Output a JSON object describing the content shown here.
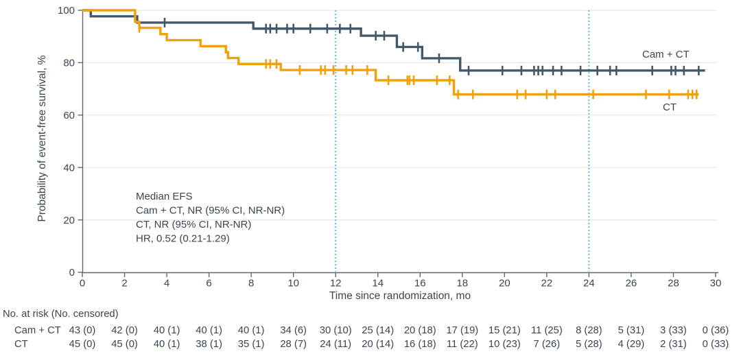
{
  "figure": {
    "y_axis_label": "Probability of event-free survival, %",
    "x_axis_label": "Time since randomization, mo",
    "legend": {
      "cam_ct": "Cam + CT",
      "ct": "CT"
    },
    "annotation": {
      "lines": [
        "Median EFS",
        "Cam + CT, NR (95% CI, NR-NR)",
        "CT, NR (95% CI, NR-NR)",
        "HR, 0.52 (0.21-1.29)"
      ]
    }
  },
  "chart_data": {
    "type": "line",
    "subtype": "kaplan-meier-step",
    "title": "",
    "xlabel": "Time since randomization, mo",
    "ylabel": "Probability of event-free survival, %",
    "xlim": [
      0,
      30
    ],
    "ylim": [
      0,
      100
    ],
    "x_ticks": [
      0,
      2,
      4,
      6,
      8,
      10,
      12,
      14,
      16,
      18,
      20,
      22,
      24,
      26,
      28,
      30
    ],
    "y_ticks": [
      0,
      20,
      40,
      60,
      80,
      100
    ],
    "grid": true,
    "reference_lines_x": [
      12,
      24
    ],
    "reference_line_color": "#4FC0E8",
    "colors": {
      "grid": "#E7E7E7",
      "axis": "#63676B",
      "text": "#3A4550"
    },
    "series": [
      {
        "name": "Cam + CT",
        "color": "#43596B",
        "steps": [
          [
            0,
            100
          ],
          [
            0.4,
            97.7
          ],
          [
            2.6,
            95.3
          ],
          [
            8.1,
            93.0
          ],
          [
            13.2,
            90.3
          ],
          [
            14.9,
            86.0
          ],
          [
            16.1,
            81.7
          ],
          [
            17.9,
            77.0
          ],
          [
            29.5,
            77.0
          ]
        ],
        "censors": [
          [
            3.9,
            95.3
          ],
          [
            8.7,
            93.0
          ],
          [
            8.9,
            93.0
          ],
          [
            9.2,
            93.0
          ],
          [
            9.7,
            93.0
          ],
          [
            10.0,
            93.0
          ],
          [
            10.8,
            93.0
          ],
          [
            11.6,
            93.0
          ],
          [
            12.2,
            93.0
          ],
          [
            12.7,
            93.0
          ],
          [
            13.9,
            90.3
          ],
          [
            14.3,
            90.3
          ],
          [
            15.2,
            86.0
          ],
          [
            15.9,
            86.0
          ],
          [
            16.9,
            81.7
          ],
          [
            18.3,
            77.0
          ],
          [
            19.9,
            77.0
          ],
          [
            20.8,
            77.0
          ],
          [
            21.4,
            77.0
          ],
          [
            21.6,
            77.0
          ],
          [
            21.8,
            77.0
          ],
          [
            22.3,
            77.0
          ],
          [
            22.7,
            77.0
          ],
          [
            23.6,
            77.0
          ],
          [
            24.4,
            77.0
          ],
          [
            25.0,
            77.0
          ],
          [
            25.3,
            77.0
          ],
          [
            27.0,
            77.0
          ],
          [
            27.9,
            77.0
          ],
          [
            28.1,
            77.0
          ],
          [
            28.5,
            77.0
          ],
          [
            29.2,
            77.0
          ]
        ]
      },
      {
        "name": "CT",
        "color": "#F0A10C",
        "steps": [
          [
            0,
            100
          ],
          [
            2.5,
            95.6
          ],
          [
            2.7,
            93.3
          ],
          [
            3.7,
            90.9
          ],
          [
            4.0,
            88.6
          ],
          [
            5.6,
            86.3
          ],
          [
            6.8,
            84.0
          ],
          [
            6.9,
            81.8
          ],
          [
            7.4,
            79.5
          ],
          [
            9.4,
            77.2
          ],
          [
            13.9,
            73.3
          ],
          [
            17.6,
            67.9
          ],
          [
            29.2,
            67.9
          ]
        ],
        "censors": [
          [
            2.7,
            93.3
          ],
          [
            8.7,
            79.5
          ],
          [
            8.9,
            79.5
          ],
          [
            9.2,
            79.5
          ],
          [
            10.3,
            77.2
          ],
          [
            11.3,
            77.2
          ],
          [
            11.5,
            77.2
          ],
          [
            11.9,
            77.2
          ],
          [
            12.5,
            77.2
          ],
          [
            12.8,
            77.2
          ],
          [
            13.5,
            77.2
          ],
          [
            14.5,
            73.3
          ],
          [
            15.4,
            73.3
          ],
          [
            15.5,
            73.3
          ],
          [
            15.7,
            73.3
          ],
          [
            16.8,
            73.3
          ],
          [
            17.4,
            73.3
          ],
          [
            17.8,
            67.9
          ],
          [
            18.5,
            67.9
          ],
          [
            20.6,
            67.9
          ],
          [
            21.0,
            67.9
          ],
          [
            22.0,
            67.9
          ],
          [
            22.4,
            67.9
          ],
          [
            24.2,
            67.9
          ],
          [
            26.7,
            67.9
          ],
          [
            27.8,
            67.9
          ],
          [
            28.7,
            67.9
          ],
          [
            28.9,
            67.9
          ],
          [
            29.1,
            67.9
          ]
        ]
      }
    ]
  },
  "risk_table": {
    "header": "No. at risk (No. censored)",
    "time_points": [
      0,
      2,
      4,
      6,
      8,
      10,
      12,
      14,
      16,
      18,
      20,
      22,
      24,
      26,
      28,
      30
    ],
    "rows": [
      {
        "label": "Cam + CT",
        "values": [
          "43 (0)",
          "42 (0)",
          "40 (1)",
          "40 (1)",
          "40 (1)",
          "34 (6)",
          "30 (10)",
          "25 (14)",
          "20 (18)",
          "17 (19)",
          "15 (21)",
          "11 (25)",
          "8 (28)",
          "5 (31)",
          "3 (33)",
          "0 (36)"
        ]
      },
      {
        "label": "CT",
        "values": [
          "45 (0)",
          "45 (0)",
          "40 (1)",
          "38 (1)",
          "35 (1)",
          "28 (7)",
          "24 (11)",
          "20 (14)",
          "16 (18)",
          "11 (22)",
          "10 (23)",
          "7 (26)",
          "5 (28)",
          "4 (29)",
          "2 (31)",
          "0 (33)"
        ]
      }
    ]
  }
}
